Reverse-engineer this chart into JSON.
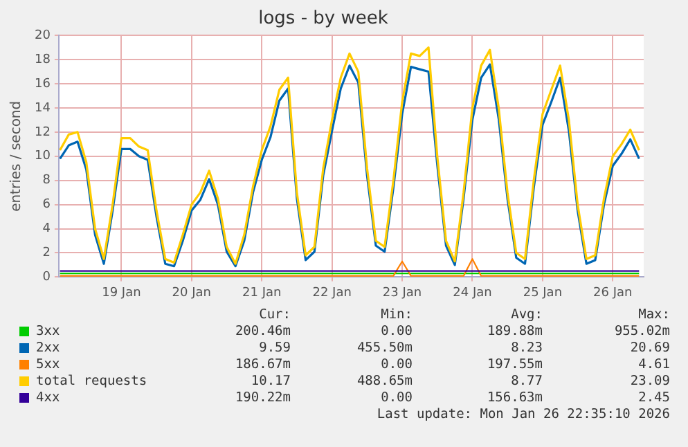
{
  "chart_data": {
    "type": "line",
    "title": "logs - by week",
    "ylabel": "entries / second",
    "x": [
      "2026-01-18T15:00",
      "2026-01-18T18:00",
      "2026-01-18T21:00",
      "2026-01-19T00:00",
      "2026-01-19T03:00",
      "2026-01-19T06:00",
      "2026-01-19T09:00",
      "2026-01-19T12:00",
      "2026-01-19T15:00",
      "2026-01-19T18:00",
      "2026-01-19T21:00",
      "2026-01-20T00:00",
      "2026-01-20T03:00",
      "2026-01-20T06:00",
      "2026-01-20T09:00",
      "2026-01-20T12:00",
      "2026-01-20T15:00",
      "2026-01-20T18:00",
      "2026-01-20T21:00",
      "2026-01-21T00:00",
      "2026-01-21T03:00",
      "2026-01-21T06:00",
      "2026-01-21T09:00",
      "2026-01-21T12:00",
      "2026-01-21T15:00",
      "2026-01-21T18:00",
      "2026-01-21T21:00",
      "2026-01-22T00:00",
      "2026-01-22T03:00",
      "2026-01-22T06:00",
      "2026-01-22T09:00",
      "2026-01-22T12:00",
      "2026-01-22T15:00",
      "2026-01-22T18:00",
      "2026-01-22T21:00",
      "2026-01-23T00:00",
      "2026-01-23T03:00",
      "2026-01-23T06:00",
      "2026-01-23T09:00",
      "2026-01-23T12:00",
      "2026-01-23T15:00",
      "2026-01-23T18:00",
      "2026-01-23T21:00",
      "2026-01-24T00:00",
      "2026-01-24T03:00",
      "2026-01-24T06:00",
      "2026-01-24T09:00",
      "2026-01-24T12:00",
      "2026-01-24T15:00",
      "2026-01-24T18:00",
      "2026-01-24T21:00",
      "2026-01-25T00:00",
      "2026-01-25T03:00",
      "2026-01-25T06:00",
      "2026-01-25T09:00",
      "2026-01-25T12:00",
      "2026-01-25T15:00",
      "2026-01-25T18:00",
      "2026-01-25T21:00",
      "2026-01-26T00:00",
      "2026-01-26T03:00",
      "2026-01-26T06:00",
      "2026-01-26T09:00",
      "2026-01-26T12:00",
      "2026-01-26T15:00",
      "2026-01-26T18:00",
      "2026-01-26T21:00"
    ],
    "xlim": [
      "2026-01-18T14:35",
      "2026-01-26T22:35"
    ],
    "xticks": [
      {
        "value": "2026-01-19T12:00",
        "label": "19 Jan"
      },
      {
        "value": "2026-01-20T12:00",
        "label": "20 Jan"
      },
      {
        "value": "2026-01-21T12:00",
        "label": "21 Jan"
      },
      {
        "value": "2026-01-22T12:00",
        "label": "22 Jan"
      },
      {
        "value": "2026-01-23T12:00",
        "label": "23 Jan"
      },
      {
        "value": "2026-01-24T12:00",
        "label": "24 Jan"
      },
      {
        "value": "2026-01-25T12:00",
        "label": "25 Jan"
      },
      {
        "value": "2026-01-26T12:00",
        "label": "26 Jan"
      }
    ],
    "ylim": [
      0,
      20
    ],
    "yticks": [
      0,
      2,
      4,
      6,
      8,
      10,
      12,
      14,
      16,
      18,
      20
    ],
    "grid": true,
    "legend": "bottom",
    "marker": "none",
    "line_style": "solid",
    "series": [
      {
        "name": "3xx",
        "color": "#00cc00",
        "values": [
          0.3,
          0.3,
          0.3,
          0.3,
          0.3,
          0.3,
          0.3,
          0.3,
          0.3,
          0.3,
          0.3,
          0.3,
          0.3,
          0.3,
          0.3,
          0.3,
          0.3,
          0.3,
          0.3,
          0.3,
          0.3,
          0.3,
          0.3,
          0.3,
          0.3,
          0.3,
          0.3,
          0.3,
          0.3,
          0.3,
          0.3,
          0.3,
          0.3,
          0.3,
          0.3,
          0.3,
          0.3,
          0.3,
          0.3,
          0.3,
          0.3,
          0.3,
          0.3,
          0.3,
          0.3,
          0.3,
          0.3,
          0.3,
          0.3,
          0.3,
          0.3,
          0.3,
          0.3,
          0.3,
          0.3,
          0.3,
          0.3,
          0.3,
          0.3,
          0.3,
          0.3,
          0.3,
          0.3,
          0.3,
          0.3,
          0.3,
          0.3
        ]
      },
      {
        "name": "2xx",
        "color": "#0066b3",
        "values": [
          9.8,
          10.9,
          11.2,
          8.9,
          3.5,
          1.1,
          5.5,
          10.6,
          10.6,
          10.0,
          9.7,
          5.0,
          1.1,
          0.9,
          3.0,
          5.5,
          6.4,
          8.1,
          6.0,
          2.1,
          0.9,
          3.0,
          7.0,
          9.7,
          11.6,
          14.6,
          15.6,
          6.5,
          1.4,
          2.1,
          8.4,
          12.1,
          15.6,
          17.5,
          16.1,
          8.4,
          2.6,
          2.1,
          7.4,
          13.5,
          17.4,
          17.2,
          17.0,
          9.3,
          2.6,
          1.0,
          6.5,
          13.0,
          16.5,
          17.6,
          13.1,
          6.5,
          1.6,
          1.1,
          7.4,
          12.6,
          14.5,
          16.5,
          12.1,
          5.5,
          1.1,
          1.4,
          6.0,
          9.2,
          10.2,
          11.4,
          9.8
        ]
      },
      {
        "name": "5xx",
        "color": "#ff8000",
        "values": [
          0.1,
          0.1,
          0.1,
          0.1,
          0.1,
          0.1,
          0.1,
          0.1,
          0.1,
          0.1,
          0.1,
          0.1,
          0.1,
          0.1,
          0.1,
          0.1,
          0.1,
          0.1,
          0.1,
          0.1,
          0.1,
          0.1,
          0.1,
          0.1,
          0.1,
          0.1,
          0.1,
          0.1,
          0.1,
          0.1,
          0.1,
          0.1,
          0.1,
          0.1,
          0.1,
          0.1,
          0.1,
          0.1,
          0.1,
          1.3,
          0.1,
          0.1,
          0.1,
          0.1,
          0.1,
          0.1,
          0.1,
          1.5,
          0.1,
          0.1,
          0.1,
          0.1,
          0.1,
          0.1,
          0.1,
          0.1,
          0.1,
          0.1,
          0.1,
          0.1,
          0.1,
          0.1,
          0.1,
          0.1,
          0.1,
          0.1,
          0.1
        ]
      },
      {
        "name": "total requests",
        "color": "#ffcc00",
        "values": [
          10.5,
          11.8,
          12.0,
          9.5,
          4.0,
          1.5,
          6.0,
          11.5,
          11.5,
          10.8,
          10.5,
          5.5,
          1.5,
          1.2,
          3.5,
          6.0,
          7.0,
          8.8,
          6.5,
          2.5,
          1.1,
          3.5,
          7.5,
          10.5,
          12.5,
          15.5,
          16.5,
          7.0,
          1.8,
          2.5,
          9.0,
          13.0,
          16.5,
          18.5,
          17.0,
          9.0,
          3.0,
          2.5,
          8.0,
          14.5,
          18.5,
          18.3,
          19.0,
          10.0,
          3.0,
          1.3,
          7.0,
          14.0,
          17.5,
          18.8,
          14.0,
          7.0,
          2.0,
          1.5,
          8.0,
          13.5,
          15.5,
          17.5,
          13.0,
          6.0,
          1.5,
          1.8,
          6.5,
          10.0,
          11.0,
          12.2,
          10.5
        ]
      },
      {
        "name": "4xx",
        "color": "#330099",
        "values": [
          0.5,
          0.5,
          0.5,
          0.5,
          0.5,
          0.5,
          0.5,
          0.5,
          0.5,
          0.5,
          0.5,
          0.5,
          0.5,
          0.5,
          0.5,
          0.5,
          0.5,
          0.5,
          0.5,
          0.5,
          0.5,
          0.5,
          0.5,
          0.5,
          0.5,
          0.5,
          0.5,
          0.5,
          0.5,
          0.5,
          0.5,
          0.5,
          0.5,
          0.5,
          0.5,
          0.5,
          0.5,
          0.5,
          0.5,
          0.5,
          0.5,
          0.5,
          0.5,
          0.5,
          0.5,
          0.5,
          0.5,
          0.5,
          0.5,
          0.5,
          0.5,
          0.5,
          0.5,
          0.5,
          0.5,
          0.5,
          0.5,
          0.5,
          0.5,
          0.5,
          0.5,
          0.5,
          0.5,
          0.5,
          0.5,
          0.5,
          0.5
        ]
      }
    ],
    "annotations": [
      "Cur:",
      "Min:",
      "Avg:",
      "Max:",
      "200.46m",
      "0.00",
      "189.88m",
      "955.02m",
      "9.59",
      "455.50m",
      "8.23",
      "20.69",
      "186.67m",
      "0.00",
      "197.55m",
      "4.61",
      "10.17",
      "488.65m",
      "8.77",
      "23.09",
      "190.22m",
      "0.00",
      "156.63m",
      "2.45",
      "Last update: Mon Jan 26 22:35:10 2026"
    ]
  }
}
